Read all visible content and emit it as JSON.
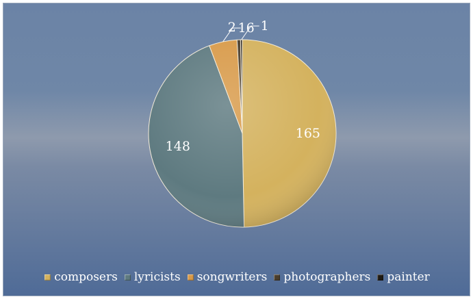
{
  "chart_data": {
    "type": "pie",
    "title": "",
    "categories": [
      "composers",
      "lyricists",
      "songwriters",
      "photographers",
      "painter"
    ],
    "values": [
      165,
      148,
      16,
      2,
      1
    ],
    "data_labels": [
      "165",
      "148",
      "16",
      "2",
      "1"
    ],
    "colors": [
      "#d4b25e",
      "#5e7a80",
      "#d89a49",
      "#4a3d2c",
      "#1e1a14"
    ],
    "legend_position": "bottom",
    "start_angle": "12 o'clock, clockwise"
  }
}
